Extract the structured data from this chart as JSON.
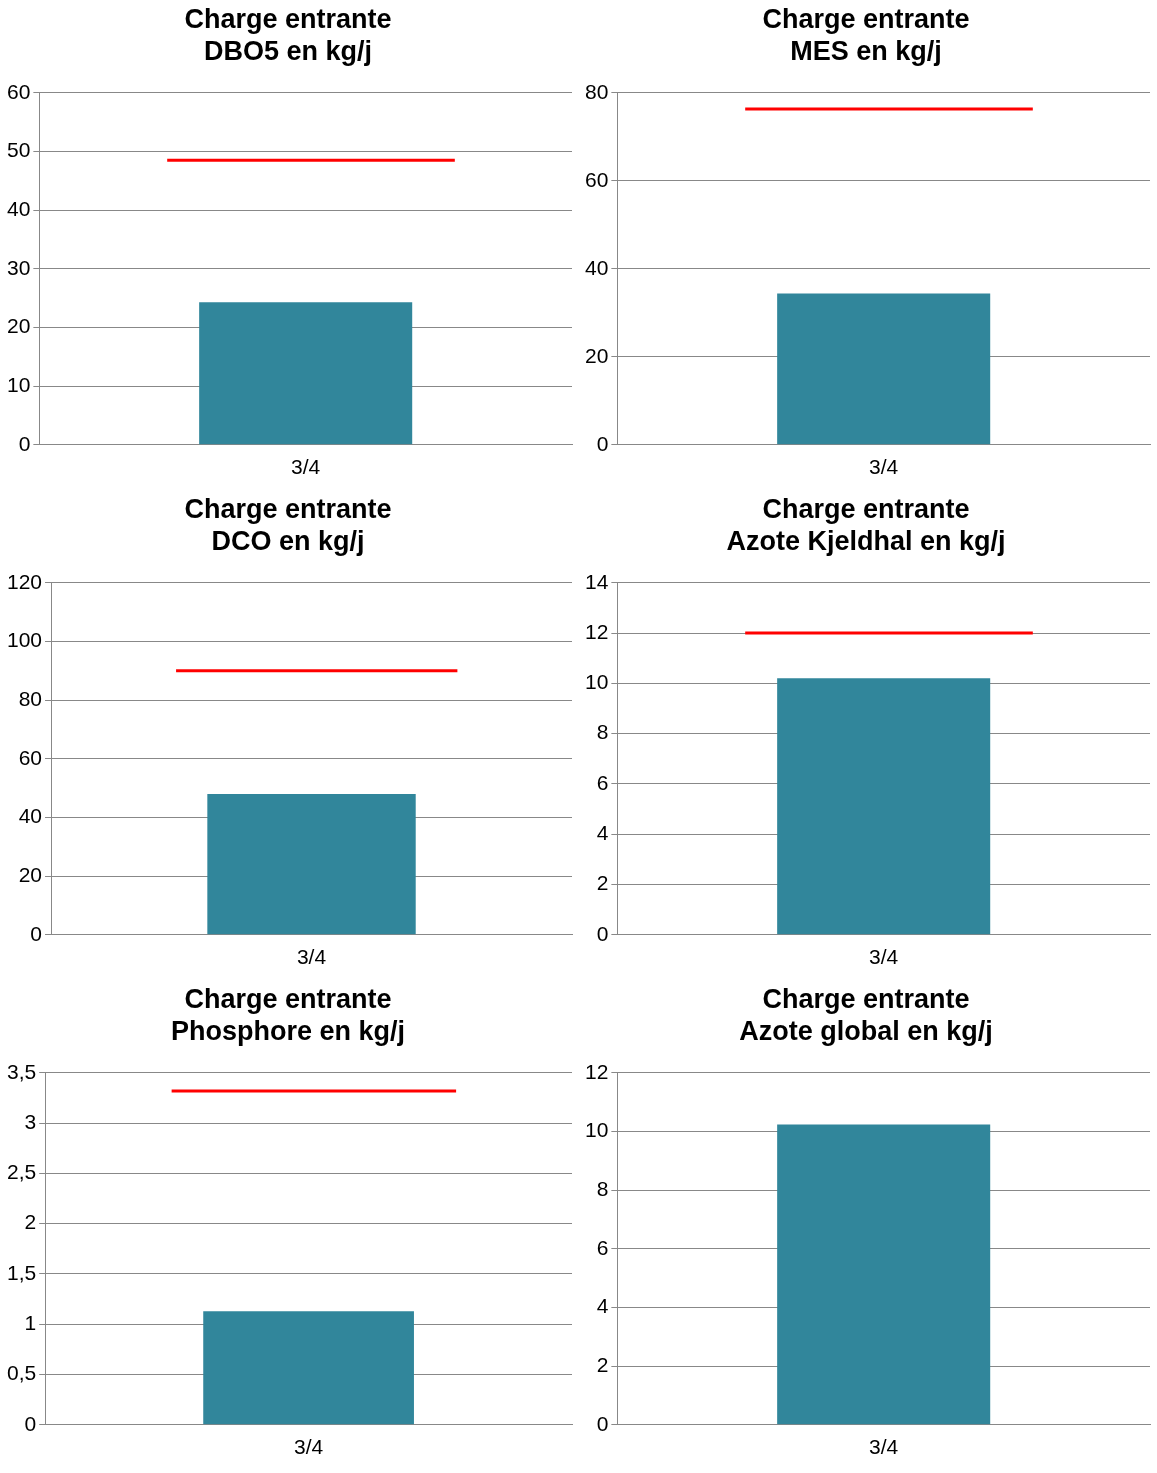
{
  "chart_data": [
    {
      "type": "bar",
      "title": "Charge entrante\nDBO5 en kg/j",
      "categories": [
        "3/4"
      ],
      "values": [
        24.3
      ],
      "color": "#31869b",
      "ylim": [
        0,
        60
      ],
      "yticks": [
        0,
        10,
        20,
        30,
        40,
        50,
        60
      ],
      "grid": "y",
      "legend": false,
      "ref_lines": [
        {
          "axis": "y",
          "value": 48.5,
          "color": "#ff0000"
        }
      ]
    },
    {
      "type": "bar",
      "title": "Charge entrante\nMES en kg/j",
      "categories": [
        "3/4"
      ],
      "values": [
        34.4
      ],
      "color": "#31869b",
      "ylim": [
        0,
        80
      ],
      "yticks": [
        0,
        20,
        40,
        60,
        80
      ],
      "grid": "y",
      "legend": false,
      "ref_lines": [
        {
          "axis": "y",
          "value": 76.3,
          "color": "#ff0000"
        }
      ]
    },
    {
      "type": "bar",
      "title": "Charge entrante\nDCO en kg/j",
      "categories": [
        "3/4"
      ],
      "values": [
        48
      ],
      "color": "#31869b",
      "ylim": [
        0,
        120
      ],
      "yticks": [
        0,
        20,
        40,
        60,
        80,
        100,
        120
      ],
      "grid": "y",
      "legend": false,
      "ref_lines": [
        {
          "axis": "y",
          "value": 90,
          "color": "#ff0000"
        }
      ]
    },
    {
      "type": "bar",
      "title": "Charge entrante\nAzote Kjeldhal en kg/j",
      "categories": [
        "3/4"
      ],
      "values": [
        10.2
      ],
      "color": "#31869b",
      "ylim": [
        0,
        14
      ],
      "yticks": [
        0,
        2,
        4,
        6,
        8,
        10,
        12,
        14
      ],
      "grid": "y",
      "legend": false,
      "ref_lines": [
        {
          "axis": "y",
          "value": 12,
          "color": "#ff0000"
        }
      ]
    },
    {
      "type": "bar",
      "title": "Charge entrante\nPhosphore en kg/j",
      "categories": [
        "3/4"
      ],
      "values": [
        1.13
      ],
      "color": "#31869b",
      "ylim": [
        0,
        3.5
      ],
      "yticks": [
        0,
        {
          "value": 0.5,
          "label": "0,5"
        },
        1,
        {
          "value": 1.5,
          "label": "1,5"
        },
        2,
        {
          "value": 2.5,
          "label": "2,5"
        },
        3,
        {
          "value": 3.5,
          "label": "3,5"
        }
      ],
      "grid": "y",
      "legend": false,
      "ref_lines": [
        {
          "axis": "y",
          "value": 3.32,
          "color": "#ff0000"
        }
      ]
    },
    {
      "type": "bar",
      "title": "Charge entrante\nAzote global en kg/j",
      "categories": [
        "3/4"
      ],
      "values": [
        10.24
      ],
      "color": "#31869b",
      "ylim": [
        0,
        12
      ],
      "yticks": [
        0,
        2,
        4,
        6,
        8,
        10,
        12
      ],
      "grid": "y",
      "legend": false
    }
  ]
}
